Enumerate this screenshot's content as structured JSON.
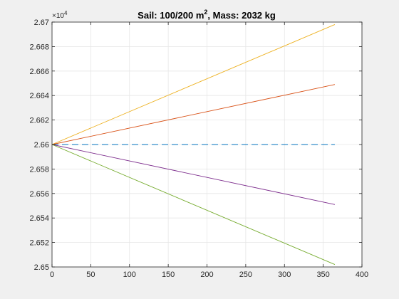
{
  "chart_data": {
    "type": "line",
    "title": "Sail: 100/200 m², Mass: 2032 kg",
    "title_parts": {
      "pre": "Sail: 100/200 m",
      "sup": "2",
      "post": ", Mass: 2032 kg"
    },
    "xlabel": "",
    "ylabel": "",
    "xlim": [
      0,
      400
    ],
    "ylim": [
      26500,
      26700
    ],
    "y_exponent_label": "×10",
    "y_exponent_power": "4",
    "x_ticks": [
      0,
      50,
      100,
      150,
      200,
      250,
      300,
      350,
      400
    ],
    "x_tick_labels": [
      "0",
      "50",
      "100",
      "150",
      "200",
      "250",
      "300",
      "350",
      "400"
    ],
    "y_ticks": [
      26500,
      26520,
      26540,
      26560,
      26580,
      26600,
      26620,
      26640,
      26660,
      26680,
      26700
    ],
    "y_tick_labels": [
      "2.65",
      "2.652",
      "2.654",
      "2.656",
      "2.658",
      "2.66",
      "2.662",
      "2.664",
      "2.666",
      "2.668",
      "2.67"
    ],
    "grid": true,
    "series": [
      {
        "x": [
          0,
          365
        ],
        "y": [
          26600,
          26698
        ],
        "color": "#edb120",
        "style": "solid"
      },
      {
        "x": [
          0,
          365
        ],
        "y": [
          26600,
          26649
        ],
        "color": "#d95319",
        "style": "solid"
      },
      {
        "x": [
          0,
          365
        ],
        "y": [
          26600,
          26600
        ],
        "color": "#0072bd",
        "style": "dashed"
      },
      {
        "x": [
          0,
          365
        ],
        "y": [
          26600,
          26551
        ],
        "color": "#7e2f8e",
        "style": "solid"
      },
      {
        "x": [
          0,
          365
        ],
        "y": [
          26600,
          26502
        ],
        "color": "#77ac30",
        "style": "solid"
      }
    ]
  }
}
